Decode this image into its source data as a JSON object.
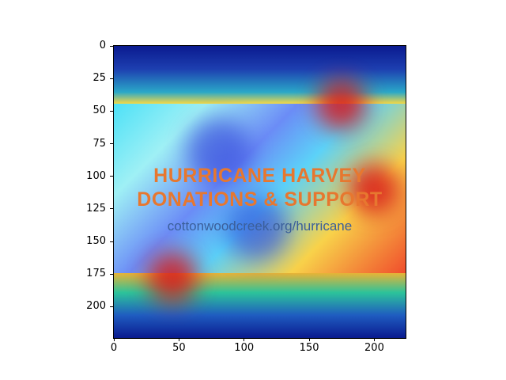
{
  "chart_data": {
    "type": "heatmap",
    "title": "",
    "xlabel": "",
    "ylabel": "",
    "xlim": [
      0,
      224
    ],
    "ylim": [
      224,
      0
    ],
    "xticks": [
      "0",
      "50",
      "100",
      "150",
      "200"
    ],
    "yticks": [
      "0",
      "25",
      "50",
      "75",
      "100",
      "125",
      "150",
      "175",
      "200"
    ],
    "colormap": "jet",
    "overlay_image_text": [
      "HURRICANE HARVEY",
      "DONATIONS & SUPPORT",
      "cottonwoodcreek.org/hurricane"
    ],
    "hotspots": [
      {
        "x": 175,
        "y": 45,
        "level": "high"
      },
      {
        "x": 200,
        "y": 110,
        "level": "high"
      },
      {
        "x": 45,
        "y": 178,
        "level": "high"
      },
      {
        "x": 80,
        "y": 80,
        "level": "low"
      },
      {
        "x": 110,
        "y": 140,
        "level": "low"
      }
    ]
  },
  "colors": {
    "high": "#d7191c",
    "mid": "#f4d845",
    "low": "#2f3fd8",
    "background": "#00007f"
  }
}
